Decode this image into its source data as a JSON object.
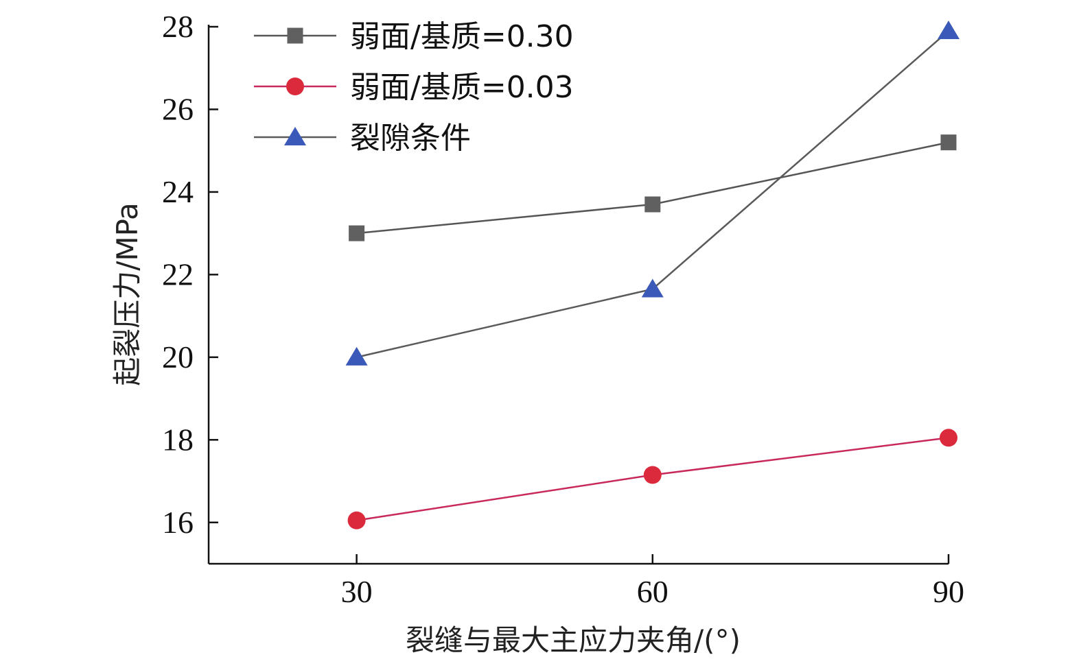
{
  "chart_data": {
    "type": "line",
    "title": "",
    "xlabel": "裂缝与最大主应力夹角/(°)",
    "ylabel": "起裂压力/MPa",
    "x": [
      30,
      60,
      90
    ],
    "x_ticks": [
      "30",
      "60",
      "90"
    ],
    "y_ticks": [
      "16",
      "18",
      "20",
      "22",
      "24",
      "26",
      "28"
    ],
    "xlim": [
      15,
      90
    ],
    "ylim": [
      15,
      28
    ],
    "grid": false,
    "legend_position": "top-left",
    "series": [
      {
        "name": "弱面/基质=0.30",
        "values": [
          23.0,
          23.7,
          25.2
        ],
        "marker": "square",
        "color": "#606060",
        "line_color": "#555555"
      },
      {
        "name": "弱面/基质=0.03",
        "values": [
          16.05,
          17.15,
          18.05
        ],
        "marker": "circle",
        "color": "#dc2a3d",
        "line_color": "#c8285a"
      },
      {
        "name": "裂隙条件",
        "values": [
          20.0,
          21.65,
          27.9
        ],
        "marker": "triangle",
        "color": "#3b59b8",
        "line_color": "#5a5a5a"
      }
    ]
  }
}
